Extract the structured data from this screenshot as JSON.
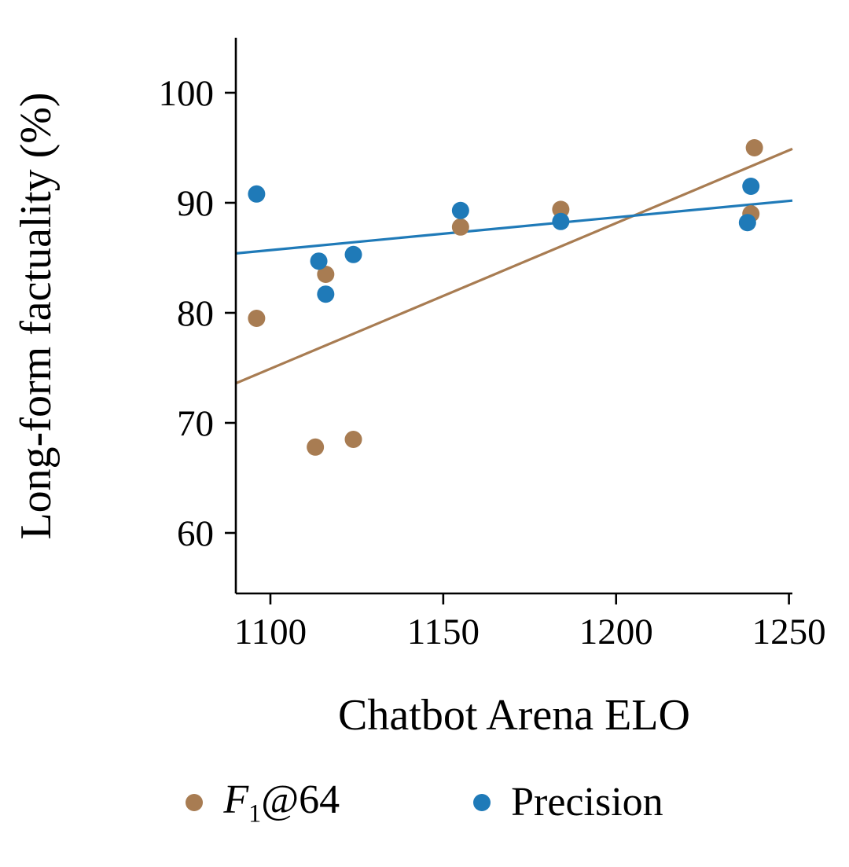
{
  "figure": {
    "background": "#ffffff"
  },
  "chart_data": {
    "type": "scatter",
    "title": "",
    "xlabel": "Chatbot Arena ELO",
    "ylabel": "Long-form factuality (%)",
    "xlim": [
      1090,
      1251
    ],
    "ylim": [
      54.5,
      105
    ],
    "xticks": [
      1100,
      1150,
      1200,
      1250
    ],
    "yticks": [
      60,
      70,
      80,
      90,
      100
    ],
    "grid": false,
    "legend_position": "bottom",
    "series": [
      {
        "name": "F1@64",
        "color": "#a87c52",
        "marker": "circle",
        "points": [
          [
            1096,
            79.5
          ],
          [
            1113,
            67.8
          ],
          [
            1116,
            83.5
          ],
          [
            1124,
            68.5
          ],
          [
            1155,
            87.8
          ],
          [
            1184,
            89.4
          ],
          [
            1239,
            89.0
          ],
          [
            1240,
            95.0
          ]
        ],
        "trend_line": {
          "x": [
            1090,
            1251
          ],
          "y": [
            73.6,
            94.9
          ]
        }
      },
      {
        "name": "Precision",
        "color": "#1f7ab8",
        "marker": "circle",
        "points": [
          [
            1096,
            90.8
          ],
          [
            1114,
            84.7
          ],
          [
            1116,
            81.7
          ],
          [
            1124,
            85.3
          ],
          [
            1155,
            89.3
          ],
          [
            1184,
            88.3
          ],
          [
            1238,
            88.2
          ],
          [
            1239,
            91.5
          ]
        ],
        "trend_line": {
          "x": [
            1090,
            1251
          ],
          "y": [
            85.4,
            90.2
          ]
        }
      }
    ]
  },
  "legend": {
    "items": [
      {
        "label_prefix": "F",
        "label_sub": "1",
        "label_suffix": "@64"
      },
      {
        "label_prefix": "Precision",
        "label_sub": "",
        "label_suffix": ""
      }
    ]
  }
}
